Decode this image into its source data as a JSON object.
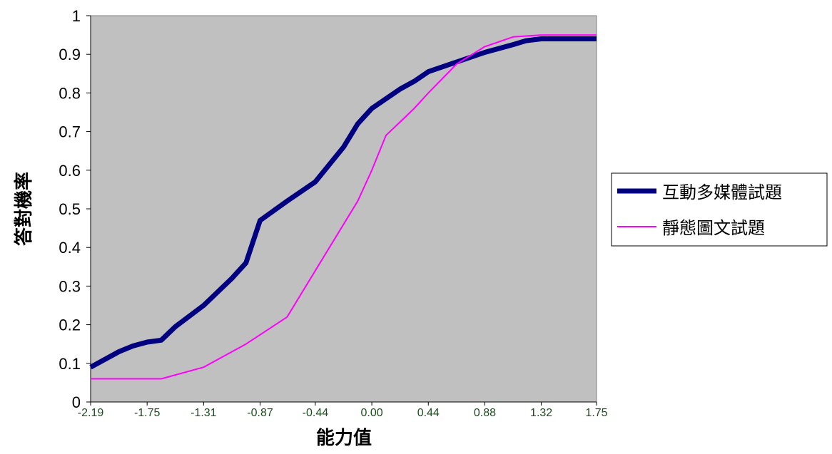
{
  "chart_data": {
    "type": "line",
    "xlabel": "能力值",
    "ylabel": "答對機率",
    "ylim": [
      0,
      1
    ],
    "y_ticks": [
      "0",
      "0.1",
      "0.2",
      "0.3",
      "0.4",
      "0.5",
      "0.6",
      "0.7",
      "0.8",
      "0.9",
      "1"
    ],
    "x_tick_labels": [
      "-2.19",
      "-1.75",
      "-1.31",
      "-0.87",
      "-0.44",
      "0.00",
      "0.44",
      "0.88",
      "1.32",
      "1.75"
    ],
    "xlim": [
      -2.19,
      1.75
    ],
    "grid": false,
    "legend_position": "right",
    "plot_background": "#c0c0c0",
    "series": [
      {
        "name": "互動多媒體試題",
        "color": "#000080",
        "x": [
          -2.19,
          -1.97,
          -1.86,
          -1.75,
          -1.64,
          -1.53,
          -1.31,
          -1.09,
          -0.98,
          -0.87,
          -0.66,
          -0.44,
          -0.22,
          -0.11,
          0.0,
          0.22,
          0.33,
          0.44,
          0.66,
          0.88,
          1.1,
          1.2,
          1.32,
          1.75
        ],
        "y": [
          0.09,
          0.13,
          0.145,
          0.155,
          0.16,
          0.195,
          0.25,
          0.32,
          0.36,
          0.47,
          0.52,
          0.57,
          0.66,
          0.72,
          0.76,
          0.81,
          0.83,
          0.855,
          0.88,
          0.905,
          0.925,
          0.935,
          0.94,
          0.94
        ]
      },
      {
        "name": "靜態圖文試題",
        "color": "#ff00ff",
        "x": [
          -2.19,
          -1.75,
          -1.64,
          -1.31,
          -0.98,
          -0.66,
          -0.44,
          -0.22,
          -0.11,
          0.0,
          0.11,
          0.33,
          0.44,
          0.66,
          0.88,
          1.1,
          1.32,
          1.75
        ],
        "y": [
          0.06,
          0.06,
          0.06,
          0.09,
          0.15,
          0.22,
          0.34,
          0.46,
          0.52,
          0.6,
          0.69,
          0.76,
          0.8,
          0.875,
          0.92,
          0.945,
          0.95,
          0.95
        ]
      }
    ]
  }
}
